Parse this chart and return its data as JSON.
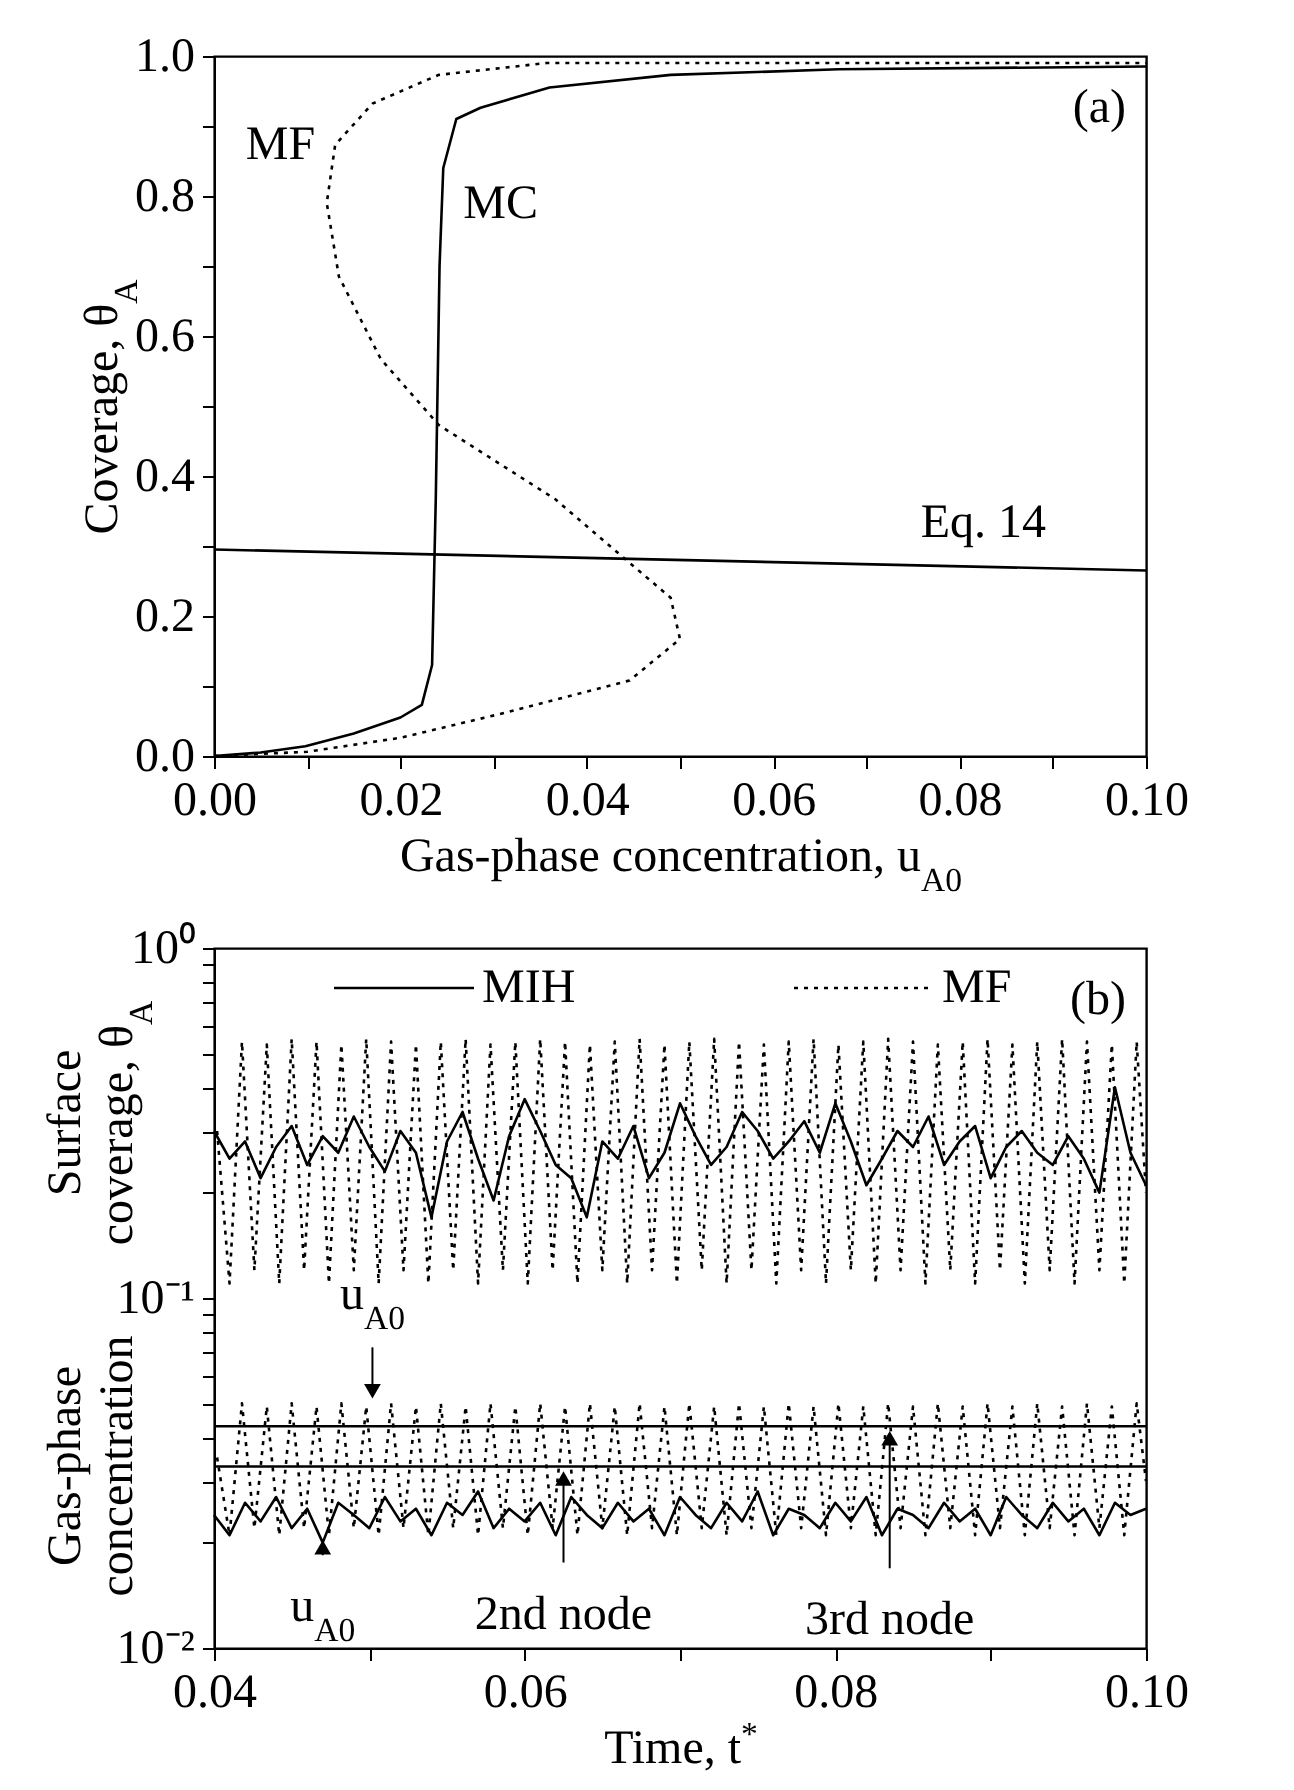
{
  "chart_data": [
    {
      "type": "line",
      "xlabel": "Gas-phase concentration, u$_{A0}$",
      "ylabel": "Coverage, θ$_{A}$",
      "xlim": [
        0,
        0.1
      ],
      "ylim": [
        0,
        1
      ],
      "xticks": [
        {
          "value": 0,
          "label": "0.00"
        },
        {
          "value": 0.01,
          "label": null
        },
        {
          "value": 0.02,
          "label": "0.02"
        },
        {
          "value": 0.03,
          "label": null
        },
        {
          "value": 0.04,
          "label": "0.04"
        },
        {
          "value": 0.05,
          "label": null
        },
        {
          "value": 0.06,
          "label": "0.06"
        },
        {
          "value": 0.07,
          "label": null
        },
        {
          "value": 0.08,
          "label": "0.08"
        },
        {
          "value": 0.09,
          "label": null
        },
        {
          "value": 0.1,
          "label": "0.10"
        }
      ],
      "yticks": [
        {
          "value": 0,
          "label": "0.0"
        },
        {
          "value": 0.1,
          "label": null
        },
        {
          "value": 0.2,
          "label": "0.2"
        },
        {
          "value": 0.3,
          "label": null
        },
        {
          "value": 0.4,
          "label": "0.4"
        },
        {
          "value": 0.5,
          "label": null
        },
        {
          "value": 0.6,
          "label": "0.6"
        },
        {
          "value": 0.7,
          "label": null
        },
        {
          "value": 0.8,
          "label": "0.8"
        },
        {
          "value": 0.9,
          "label": null
        },
        {
          "value": 1,
          "label": "1.0"
        }
      ],
      "grid": false,
      "legend": false,
      "series": [
        {
          "name": "MC",
          "color": "#000000",
          "line_style": "solid",
          "x": [
            0,
            0.005,
            0.0098,
            0.015,
            0.02,
            0.0223,
            0.0234,
            0.0238,
            0.0242,
            0.0246,
            0.026,
            0.0286,
            0.036,
            0.049,
            0.067,
            0.1
          ],
          "values": [
            0,
            0.005,
            0.014,
            0.032,
            0.055,
            0.073,
            0.13,
            0.37,
            0.7,
            0.84,
            0.91,
            0.926,
            0.955,
            0.973,
            0.981,
            0.985
          ]
        },
        {
          "name": "MF",
          "color": "#000000",
          "line_style": "dotted",
          "x": [
            0,
            0.01,
            0.02,
            0.031,
            0.0446,
            0.05,
            0.049,
            0.0438,
            0.0366,
            0.0241,
            0.0179,
            0.0134,
            0.0121,
            0.013,
            0.017,
            0.0241,
            0.0357,
            0.058,
            0.1
          ],
          "values": [
            0,
            0.006,
            0.026,
            0.061,
            0.108,
            0.167,
            0.226,
            0.285,
            0.367,
            0.473,
            0.567,
            0.685,
            0.79,
            0.873,
            0.932,
            0.973,
            0.99,
            0.99,
            0.99
          ]
        },
        {
          "name": "Eq. 14",
          "color": "#000000",
          "line_style": "solid",
          "x": [
            0,
            0.1
          ],
          "values": [
            0.295,
            0.265
          ]
        }
      ],
      "annotations": [
        "(a)"
      ]
    },
    {
      "type": "line",
      "xlabel": "Time, t$^{*}$",
      "ylabel": "Surface coverage, θ$_{A}$",
      "xlim": [
        0.04,
        0.1
      ],
      "ylim": [
        0.01,
        1
      ],
      "log": "y",
      "xticks": [
        0.04,
        {
          "value": 0.05,
          "label": null
        },
        0.06,
        {
          "value": 0.07,
          "label": null
        },
        0.08,
        {
          "value": 0.09,
          "label": null
        },
        {
          "value": 0.1,
          "label": "0.10"
        }
      ],
      "yticks": [
        {
          "value": 0.01,
          "label": "10⁻²"
        },
        {
          "value": 0.02,
          "label": null
        },
        {
          "value": 0.03,
          "label": null
        },
        {
          "value": 0.04,
          "label": null
        },
        {
          "value": 0.05,
          "label": null
        },
        {
          "value": 0.06,
          "label": null
        },
        {
          "value": 0.07,
          "label": null
        },
        {
          "value": 0.08,
          "label": null
        },
        {
          "value": 0.09,
          "label": null
        },
        {
          "value": 0.1,
          "label": "10⁻¹"
        },
        {
          "value": 0.2,
          "label": null
        },
        {
          "value": 0.3,
          "label": null
        },
        {
          "value": 0.4,
          "label": null
        },
        {
          "value": 0.5,
          "label": null
        },
        {
          "value": 0.6,
          "label": null
        },
        {
          "value": 0.7,
          "label": null
        },
        {
          "value": 0.8,
          "label": null
        },
        {
          "value": 0.9,
          "label": null
        },
        {
          "value": 1,
          "label": "10⁰"
        }
      ],
      "grid": false,
      "legend": "top",
      "x": [
        0.04,
        0.041,
        0.042,
        0.043,
        0.044,
        0.045,
        0.046,
        0.047,
        0.048,
        0.049,
        0.05,
        0.051,
        0.052,
        0.053,
        0.054,
        0.055,
        0.056,
        0.057,
        0.058,
        0.059,
        0.06,
        0.061,
        0.062,
        0.063,
        0.064,
        0.065,
        0.066,
        0.067,
        0.068,
        0.069,
        0.07,
        0.071,
        0.072,
        0.073,
        0.074,
        0.075,
        0.076,
        0.077,
        0.078,
        0.079,
        0.08,
        0.081,
        0.082,
        0.083,
        0.084,
        0.085,
        0.086,
        0.087,
        0.088,
        0.089,
        0.09,
        0.091,
        0.092,
        0.093,
        0.094,
        0.095,
        0.096,
        0.097,
        0.098,
        0.099,
        0.1
      ],
      "series": [
        {
          "name": "MIH",
          "color": "#000000",
          "line_style": "solid",
          "values": [
            0.3,
            0.25,
            0.28,
            0.22,
            0.27,
            0.31,
            0.24,
            0.29,
            0.26,
            0.33,
            0.27,
            0.23,
            0.3,
            0.26,
            0.17,
            0.28,
            0.34,
            0.25,
            0.19,
            0.29,
            0.37,
            0.3,
            0.24,
            0.22,
            0.17,
            0.28,
            0.25,
            0.31,
            0.22,
            0.26,
            0.36,
            0.29,
            0.24,
            0.27,
            0.34,
            0.3,
            0.25,
            0.28,
            0.32,
            0.26,
            0.36,
            0.28,
            0.21,
            0.25,
            0.3,
            0.27,
            0.33,
            0.24,
            0.28,
            0.31,
            0.22,
            0.27,
            0.3,
            0.26,
            0.24,
            0.29,
            0.25,
            0.2,
            0.4,
            0.26,
            0.21
          ]
        },
        {
          "name": "MF",
          "color": "#000000",
          "line_style": "dotted",
          "x": [
            0.0402,
            0.041,
            0.0418,
            0.0426,
            0.0434,
            0.0442,
            0.045,
            0.0458,
            0.0466,
            0.0474,
            0.0482,
            0.049,
            0.0498,
            0.0506,
            0.0514,
            0.0522,
            0.053,
            0.0538,
            0.0546,
            0.0554,
            0.0562,
            0.057,
            0.0578,
            0.0586,
            0.0594,
            0.0602,
            0.061,
            0.0618,
            0.0626,
            0.0634,
            0.0642,
            0.065,
            0.0658,
            0.0666,
            0.0674,
            0.0682,
            0.069,
            0.0698,
            0.0706,
            0.0714,
            0.0722,
            0.073,
            0.0738,
            0.0746,
            0.0754,
            0.0762,
            0.077,
            0.0778,
            0.0786,
            0.0794,
            0.0802,
            0.081,
            0.0818,
            0.0826,
            0.0834,
            0.0842,
            0.085,
            0.0858,
            0.0866,
            0.0874,
            0.0882,
            0.089,
            0.0898,
            0.0906,
            0.0914,
            0.0922,
            0.093,
            0.0938,
            0.0946,
            0.0954,
            0.0962,
            0.097,
            0.0978,
            0.0986,
            0.0994,
            0.1
          ],
          "values": [
            0.3,
            0.11,
            0.54,
            0.12,
            0.53,
            0.11,
            0.55,
            0.12,
            0.54,
            0.11,
            0.53,
            0.12,
            0.55,
            0.11,
            0.54,
            0.12,
            0.53,
            0.11,
            0.54,
            0.12,
            0.55,
            0.11,
            0.53,
            0.12,
            0.54,
            0.11,
            0.55,
            0.12,
            0.54,
            0.11,
            0.53,
            0.12,
            0.54,
            0.11,
            0.55,
            0.12,
            0.53,
            0.11,
            0.54,
            0.12,
            0.55,
            0.11,
            0.54,
            0.12,
            0.53,
            0.11,
            0.54,
            0.12,
            0.55,
            0.11,
            0.53,
            0.12,
            0.54,
            0.11,
            0.55,
            0.12,
            0.54,
            0.11,
            0.53,
            0.12,
            0.54,
            0.11,
            0.55,
            0.12,
            0.53,
            0.11,
            0.54,
            0.12,
            0.55,
            0.11,
            0.54,
            0.12,
            0.53,
            0.11,
            0.54,
            0.2
          ]
        },
        {
          "color": "#000000",
          "line_style": "solid",
          "values": [
            0.024,
            0.021,
            0.026,
            0.023,
            0.027,
            0.022,
            0.025,
            0.02,
            0.026,
            0.024,
            0.022,
            0.027,
            0.023,
            0.025,
            0.021,
            0.026,
            0.024,
            0.028,
            0.022,
            0.025,
            0.023,
            0.026,
            0.021,
            0.027,
            0.024,
            0.022,
            0.026,
            0.023,
            0.025,
            0.021,
            0.027,
            0.024,
            0.022,
            0.026,
            0.023,
            0.028,
            0.021,
            0.025,
            0.024,
            0.022,
            0.026,
            0.023,
            0.027,
            0.021,
            0.025,
            0.024,
            0.022,
            0.026,
            0.023,
            0.025,
            0.021,
            0.027,
            0.024,
            0.022,
            0.026,
            0.023,
            0.025,
            0.021,
            0.026,
            0.024,
            0.025
          ]
        },
        {
          "color": "#000000",
          "line_style": "dotted",
          "x": [
            0.0402,
            0.041,
            0.0418,
            0.0426,
            0.0434,
            0.0442,
            0.045,
            0.0458,
            0.0466,
            0.0474,
            0.0482,
            0.049,
            0.0498,
            0.0506,
            0.0514,
            0.0522,
            0.053,
            0.0538,
            0.0546,
            0.0554,
            0.0562,
            0.057,
            0.0578,
            0.0586,
            0.0594,
            0.0602,
            0.061,
            0.0618,
            0.0626,
            0.0634,
            0.0642,
            0.065,
            0.0658,
            0.0666,
            0.0674,
            0.0682,
            0.069,
            0.0698,
            0.0706,
            0.0714,
            0.0722,
            0.073,
            0.0738,
            0.0746,
            0.0754,
            0.0762,
            0.077,
            0.0778,
            0.0786,
            0.0794,
            0.0802,
            0.081,
            0.0818,
            0.0826,
            0.0834,
            0.0842,
            0.085,
            0.0858,
            0.0866,
            0.0874,
            0.0882,
            0.089,
            0.0898,
            0.0906,
            0.0914,
            0.0922,
            0.093,
            0.0938,
            0.0946,
            0.0954,
            0.0962,
            0.097,
            0.0978,
            0.0986,
            0.0994,
            0.1
          ],
          "values": [
            0.035,
            0.021,
            0.05,
            0.022,
            0.049,
            0.021,
            0.05,
            0.022,
            0.049,
            0.021,
            0.05,
            0.022,
            0.049,
            0.021,
            0.05,
            0.022,
            0.049,
            0.021,
            0.05,
            0.022,
            0.049,
            0.021,
            0.05,
            0.022,
            0.049,
            0.021,
            0.05,
            0.022,
            0.049,
            0.021,
            0.05,
            0.022,
            0.049,
            0.021,
            0.05,
            0.022,
            0.049,
            0.021,
            0.05,
            0.022,
            0.049,
            0.021,
            0.05,
            0.022,
            0.049,
            0.021,
            0.05,
            0.022,
            0.049,
            0.021,
            0.05,
            0.022,
            0.049,
            0.021,
            0.05,
            0.022,
            0.049,
            0.021,
            0.05,
            0.022,
            0.049,
            0.021,
            0.05,
            0.022,
            0.049,
            0.021,
            0.05,
            0.022,
            0.049,
            0.021,
            0.05,
            0.022,
            0.049,
            0.021,
            0.05,
            0.03
          ]
        }
      ],
      "ref_lines": [
        {
          "axis": "y",
          "value": 0.043,
          "color": "#000000",
          "line_style": "solid"
        },
        {
          "axis": "y",
          "value": 0.033,
          "color": "#000000",
          "line_style": "solid"
        }
      ],
      "annotations": [
        "(b)",
        "Gas-phase concentration",
        {
          "text": "u$_{A0}$",
          "x": 0.0502,
          "y": 0.05
        },
        {
          "text": "u$_{A0}$",
          "x": 0.047,
          "y": 0.021
        },
        {
          "text": "2nd node",
          "x": 0.0625,
          "y": 0.033
        },
        {
          "text": "3rd node",
          "x": 0.0835,
          "y": 0.043
        }
      ]
    }
  ]
}
